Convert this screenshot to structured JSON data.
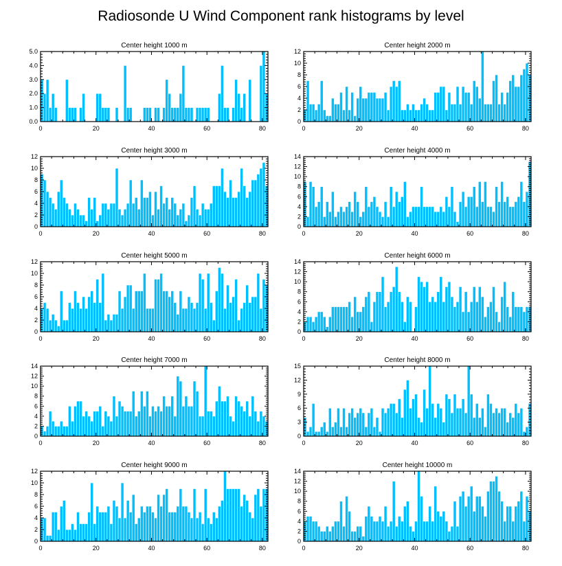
{
  "title": "Radiosonde U Wind Component rank histograms by level",
  "colors": {
    "bar": "#00bfff",
    "bar_edge": "#ffffff",
    "axis": "#000000",
    "background": "#ffffff"
  },
  "chart_data": [
    {
      "type": "bar",
      "title": "Center height 1000 m",
      "xlim": [
        0,
        82
      ],
      "ylim": [
        0,
        5
      ],
      "xticks": [
        0,
        20,
        40,
        60,
        80
      ],
      "yticks": [
        0,
        1,
        2,
        3,
        4,
        5
      ],
      "ytick_labels": [
        "0.0",
        "1.0",
        "2.0",
        "3.0",
        "4.0",
        "5.0"
      ],
      "values": [
        3,
        2,
        3,
        1,
        2,
        1,
        0,
        0,
        0,
        3,
        1,
        1,
        1,
        0,
        1,
        2,
        0,
        0,
        0,
        0,
        2,
        2,
        1,
        1,
        1,
        0,
        0,
        1,
        0,
        0,
        4,
        1,
        1,
        0,
        0,
        0,
        0,
        1,
        1,
        1,
        0,
        1,
        1,
        0,
        1,
        3,
        2,
        1,
        1,
        1,
        2,
        4,
        1,
        1,
        1,
        0,
        1,
        1,
        1,
        1,
        1,
        0,
        0,
        0,
        2,
        4,
        1,
        1,
        0,
        1,
        3,
        2,
        1,
        2,
        0,
        3,
        0,
        0,
        0,
        4,
        5,
        2
      ]
    },
    {
      "type": "bar",
      "title": "Center height 2000 m",
      "xlim": [
        0,
        82
      ],
      "ylim": [
        0,
        12
      ],
      "xticks": [
        0,
        20,
        40,
        60,
        80
      ],
      "yticks": [
        0,
        2,
        4,
        6,
        8,
        10,
        12
      ],
      "values": [
        2,
        7,
        3,
        3,
        2,
        3,
        7,
        2,
        1,
        1,
        4,
        3,
        3,
        5,
        2,
        6,
        2,
        5,
        1,
        4,
        6,
        4,
        4,
        5,
        5,
        5,
        4,
        4,
        4,
        5,
        2,
        6,
        7,
        6,
        7,
        2,
        2,
        3,
        2,
        3,
        2,
        2,
        3,
        4,
        3,
        2,
        2,
        5,
        5,
        6,
        6,
        2,
        5,
        3,
        3,
        6,
        3,
        6,
        5,
        5,
        3,
        7,
        6,
        4,
        12,
        3,
        3,
        3,
        7,
        8,
        3,
        5,
        3,
        5,
        7,
        8,
        6,
        6,
        8,
        9,
        10,
        8
      ]
    },
    {
      "type": "bar",
      "title": "Center height 3000 m",
      "xlim": [
        0,
        82
      ],
      "ylim": [
        0,
        12
      ],
      "xticks": [
        0,
        20,
        40,
        60,
        80
      ],
      "yticks": [
        0,
        2,
        4,
        6,
        8,
        10,
        12
      ],
      "values": [
        9,
        8,
        6,
        5,
        4,
        3,
        6,
        8,
        5,
        4,
        3,
        2,
        4,
        3,
        2,
        2,
        1,
        5,
        3,
        5,
        1,
        2,
        4,
        4,
        3,
        4,
        4,
        10,
        3,
        2,
        3,
        4,
        8,
        4,
        5,
        3,
        8,
        5,
        5,
        6,
        2,
        6,
        3,
        7,
        4,
        5,
        3,
        5,
        4,
        2,
        3,
        4,
        1,
        2,
        5,
        7,
        3,
        2,
        4,
        3,
        3,
        4,
        7,
        7,
        7,
        10,
        6,
        5,
        8,
        5,
        5,
        6,
        10,
        7,
        5,
        6,
        8,
        8,
        9,
        10,
        11,
        7
      ]
    },
    {
      "type": "bar",
      "title": "Center height 4000 m",
      "xlim": [
        0,
        82
      ],
      "ylim": [
        0,
        14
      ],
      "xticks": [
        0,
        20,
        40,
        60,
        80
      ],
      "yticks": [
        0,
        2,
        4,
        6,
        8,
        10,
        12,
        14
      ],
      "values": [
        9,
        2,
        9,
        8,
        4,
        5,
        8,
        2,
        5,
        3,
        7,
        2,
        3,
        4,
        3,
        4,
        5,
        3,
        7,
        5,
        2,
        3,
        8,
        4,
        5,
        6,
        4,
        3,
        2,
        5,
        2,
        8,
        4,
        7,
        5,
        6,
        9,
        2,
        3,
        4,
        4,
        4,
        8,
        4,
        4,
        4,
        4,
        3,
        3,
        4,
        3,
        6,
        4,
        8,
        3,
        1,
        5,
        7,
        4,
        6,
        6,
        8,
        4,
        9,
        5,
        9,
        4,
        4,
        3,
        8,
        5,
        9,
        5,
        6,
        4,
        4,
        5,
        6,
        9,
        5,
        7,
        13
      ]
    },
    {
      "type": "bar",
      "title": "Center height 5000 m",
      "xlim": [
        0,
        82
      ],
      "ylim": [
        0,
        12
      ],
      "xticks": [
        0,
        20,
        40,
        60,
        80
      ],
      "yticks": [
        0,
        2,
        4,
        6,
        8,
        10,
        12
      ],
      "values": [
        4,
        5,
        4,
        2,
        3,
        2,
        1,
        7,
        2,
        2,
        5,
        4,
        7,
        5,
        4,
        6,
        4,
        6,
        7,
        5,
        9,
        5,
        10,
        2,
        3,
        2,
        3,
        3,
        7,
        4,
        6,
        8,
        8,
        4,
        7,
        7,
        7,
        10,
        4,
        4,
        4,
        9,
        9,
        10,
        7,
        7,
        6,
        7,
        5,
        3,
        7,
        4,
        4,
        6,
        5,
        4,
        5,
        10,
        9,
        4,
        10,
        5,
        2,
        7,
        11,
        10,
        4,
        8,
        5,
        6,
        9,
        2,
        4,
        5,
        8,
        5,
        6,
        6,
        10,
        4,
        9,
        8
      ]
    },
    {
      "type": "bar",
      "title": "Center height 6000 m",
      "xlim": [
        0,
        82
      ],
      "ylim": [
        0,
        14
      ],
      "xticks": [
        0,
        20,
        40,
        60,
        80
      ],
      "yticks": [
        0,
        2,
        4,
        6,
        8,
        10,
        12,
        14
      ],
      "values": [
        2,
        3,
        3,
        2,
        3,
        4,
        4,
        3,
        1,
        3,
        5,
        5,
        5,
        5,
        5,
        5,
        6,
        3,
        7,
        4,
        4,
        5,
        7,
        8,
        2,
        6,
        8,
        8,
        11,
        5,
        6,
        8,
        9,
        13,
        8,
        6,
        2,
        7,
        6,
        0,
        5,
        11,
        10,
        9,
        10,
        6,
        7,
        6,
        8,
        11,
        6,
        9,
        10,
        7,
        5,
        6,
        9,
        4,
        8,
        4,
        6,
        9,
        6,
        9,
        7,
        3,
        5,
        6,
        9,
        4,
        2,
        7,
        10,
        5,
        3,
        8,
        5,
        5,
        5,
        4,
        5,
        5
      ]
    },
    {
      "type": "bar",
      "title": "Center height 7000 m",
      "xlim": [
        0,
        82
      ],
      "ylim": [
        0,
        14
      ],
      "xticks": [
        0,
        20,
        40,
        60,
        80
      ],
      "yticks": [
        0,
        2,
        4,
        6,
        8,
        10,
        12,
        14
      ],
      "values": [
        2,
        1,
        2,
        5,
        3,
        2,
        2,
        3,
        2,
        2,
        6,
        3,
        6,
        7,
        7,
        4,
        5,
        4,
        3,
        5,
        5,
        6,
        2,
        5,
        4,
        3,
        8,
        4,
        7,
        6,
        5,
        5,
        5,
        9,
        4,
        5,
        9,
        6,
        9,
        4,
        6,
        5,
        6,
        5,
        8,
        6,
        6,
        8,
        4,
        12,
        11,
        6,
        8,
        6,
        6,
        11,
        9,
        4,
        4,
        14,
        5,
        5,
        4,
        7,
        10,
        7,
        7,
        8,
        4,
        3,
        8,
        7,
        6,
        5,
        7,
        4,
        8,
        5,
        3,
        5,
        4,
        3
      ]
    },
    {
      "type": "bar",
      "title": "Center height 8000 m",
      "xlim": [
        0,
        82
      ],
      "ylim": [
        0,
        15
      ],
      "xticks": [
        0,
        20,
        40,
        60,
        80
      ],
      "yticks": [
        0,
        3,
        6,
        9,
        12,
        15
      ],
      "values": [
        4,
        1,
        2,
        7,
        1,
        1,
        2,
        3,
        1,
        6,
        2,
        3,
        6,
        2,
        6,
        2,
        5,
        6,
        4,
        5,
        6,
        5,
        2,
        5,
        6,
        2,
        4,
        1,
        6,
        5,
        6,
        7,
        7,
        5,
        8,
        4,
        10,
        12,
        6,
        8,
        9,
        4,
        3,
        10,
        6,
        15,
        7,
        4,
        7,
        6,
        3,
        9,
        8,
        5,
        9,
        6,
        6,
        8,
        5,
        15,
        9,
        4,
        7,
        4,
        6,
        2,
        9,
        7,
        5,
        6,
        5,
        6,
        6,
        3,
        5,
        4,
        7,
        5,
        6,
        1,
        2,
        7
      ]
    },
    {
      "type": "bar",
      "title": "Center height 9000 m",
      "xlim": [
        0,
        82
      ],
      "ylim": [
        0,
        12
      ],
      "xticks": [
        0,
        20,
        40,
        60,
        80
      ],
      "yticks": [
        0,
        2,
        4,
        6,
        8,
        10,
        12
      ],
      "values": [
        4,
        4,
        1,
        1,
        5,
        5,
        2,
        6,
        7,
        2,
        2,
        3,
        2,
        5,
        3,
        3,
        3,
        5,
        10,
        3,
        6,
        5,
        5,
        5,
        6,
        3,
        7,
        6,
        4,
        10,
        4,
        7,
        5,
        8,
        3,
        4,
        6,
        5,
        6,
        6,
        5,
        4,
        8,
        6,
        8,
        9,
        5,
        5,
        5,
        6,
        9,
        6,
        6,
        5,
        4,
        9,
        4,
        5,
        3,
        9,
        4,
        3,
        5,
        4,
        6,
        7,
        12,
        9,
        9,
        9,
        9,
        9,
        6,
        8,
        7,
        5,
        4,
        8,
        9,
        6,
        9,
        9
      ]
    },
    {
      "type": "bar",
      "title": "Center height 10000 m",
      "xlim": [
        0,
        82
      ],
      "ylim": [
        0,
        14
      ],
      "xticks": [
        0,
        20,
        40,
        60,
        80
      ],
      "yticks": [
        0,
        2,
        4,
        6,
        8,
        10,
        12,
        14
      ],
      "values": [
        4,
        5,
        5,
        4,
        4,
        3,
        2,
        2,
        3,
        2,
        3,
        4,
        4,
        8,
        3,
        9,
        6,
        2,
        2,
        3,
        3,
        1,
        5,
        7,
        5,
        4,
        4,
        5,
        4,
        7,
        3,
        4,
        12,
        3,
        5,
        4,
        7,
        8,
        3,
        2,
        4,
        14,
        9,
        4,
        4,
        7,
        4,
        11,
        6,
        5,
        6,
        4,
        2,
        3,
        8,
        3,
        9,
        10,
        7,
        9,
        11,
        6,
        9,
        9,
        7,
        5,
        10,
        12,
        12,
        13,
        10,
        8,
        4,
        7,
        7,
        4,
        7,
        8,
        10,
        4,
        9,
        6
      ]
    }
  ]
}
